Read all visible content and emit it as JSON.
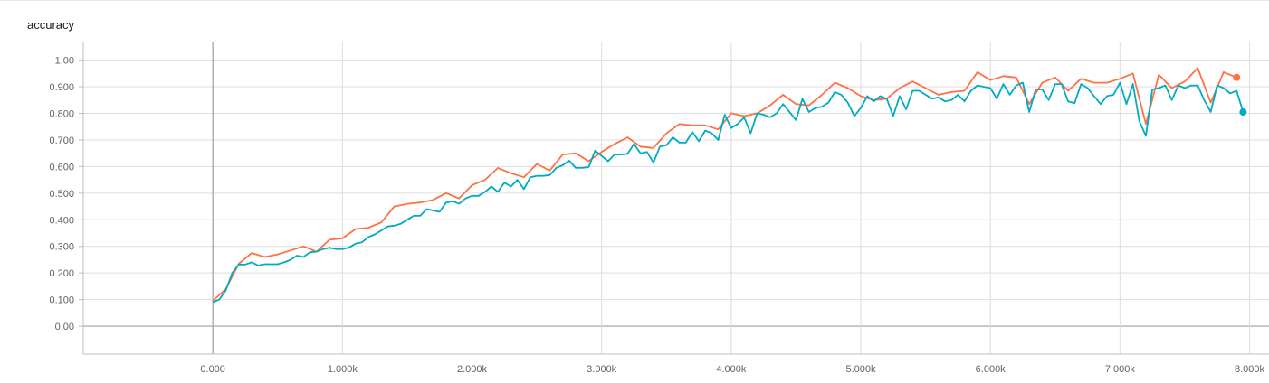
{
  "card": {
    "title": "accuracy"
  },
  "chart_data": {
    "type": "line",
    "title": "accuracy",
    "xlabel": "",
    "ylabel": "",
    "xlim": [
      -1000,
      8150
    ],
    "ylim": [
      -0.105,
      1.07
    ],
    "grid": true,
    "x_ticks": [
      {
        "value": 0,
        "label": "0.000"
      },
      {
        "value": 1000,
        "label": "1.000k"
      },
      {
        "value": 2000,
        "label": "2.000k"
      },
      {
        "value": 3000,
        "label": "3.000k"
      },
      {
        "value": 4000,
        "label": "4.000k"
      },
      {
        "value": 5000,
        "label": "5.000k"
      },
      {
        "value": 6000,
        "label": "6.000k"
      },
      {
        "value": 7000,
        "label": "7.000k"
      },
      {
        "value": 8000,
        "label": "8.000k"
      }
    ],
    "y_ticks": [
      {
        "value": 0.0,
        "label": "0.00"
      },
      {
        "value": 0.1,
        "label": "0.100"
      },
      {
        "value": 0.2,
        "label": "0.200"
      },
      {
        "value": 0.3,
        "label": "0.300"
      },
      {
        "value": 0.4,
        "label": "0.400"
      },
      {
        "value": 0.5,
        "label": "0.500"
      },
      {
        "value": 0.6,
        "label": "0.600"
      },
      {
        "value": 0.7,
        "label": "0.700"
      },
      {
        "value": 0.8,
        "label": "0.800"
      },
      {
        "value": 0.9,
        "label": "0.900"
      },
      {
        "value": 1.0,
        "label": "1.00"
      }
    ],
    "series": [
      {
        "color": "#ff7043",
        "x": [
          0,
          100,
          200,
          300,
          400,
          500,
          600,
          700,
          800,
          900,
          1000,
          1100,
          1200,
          1300,
          1400,
          1500,
          1600,
          1700,
          1800,
          1900,
          2000,
          2100,
          2200,
          2300,
          2400,
          2500,
          2600,
          2700,
          2800,
          2900,
          3000,
          3100,
          3200,
          3300,
          3400,
          3500,
          3600,
          3700,
          3800,
          3900,
          4000,
          4100,
          4200,
          4300,
          4400,
          4500,
          4600,
          4700,
          4800,
          4900,
          5000,
          5100,
          5200,
          5300,
          5400,
          5500,
          5600,
          5700,
          5800,
          5900,
          6000,
          6100,
          6200,
          6300,
          6400,
          6500,
          6600,
          6700,
          6800,
          6900,
          7000,
          7100,
          7200,
          7300,
          7400,
          7500,
          7600,
          7700,
          7800,
          7900
        ],
        "values": [
          0.095,
          0.14,
          0.235,
          0.275,
          0.26,
          0.27,
          0.285,
          0.3,
          0.28,
          0.325,
          0.33,
          0.365,
          0.37,
          0.39,
          0.45,
          0.46,
          0.465,
          0.475,
          0.5,
          0.48,
          0.53,
          0.55,
          0.595,
          0.575,
          0.56,
          0.61,
          0.585,
          0.645,
          0.65,
          0.62,
          0.655,
          0.685,
          0.71,
          0.675,
          0.67,
          0.725,
          0.76,
          0.755,
          0.755,
          0.74,
          0.8,
          0.79,
          0.8,
          0.83,
          0.87,
          0.835,
          0.83,
          0.87,
          0.915,
          0.895,
          0.865,
          0.85,
          0.855,
          0.895,
          0.92,
          0.895,
          0.87,
          0.88,
          0.885,
          0.955,
          0.925,
          0.94,
          0.935,
          0.835,
          0.915,
          0.935,
          0.885,
          0.93,
          0.915,
          0.915,
          0.93,
          0.95,
          0.76,
          0.945,
          0.895,
          0.92,
          0.97,
          0.84,
          0.955,
          0.935
        ]
      },
      {
        "color": "#00acc1",
        "x": [
          0,
          50,
          100,
          150,
          200,
          250,
          300,
          350,
          400,
          450,
          500,
          550,
          600,
          650,
          700,
          750,
          800,
          850,
          900,
          950,
          1000,
          1050,
          1100,
          1150,
          1200,
          1250,
          1300,
          1350,
          1400,
          1450,
          1500,
          1550,
          1600,
          1650,
          1700,
          1750,
          1800,
          1850,
          1900,
          1950,
          2000,
          2050,
          2100,
          2150,
          2200,
          2250,
          2300,
          2350,
          2400,
          2450,
          2500,
          2550,
          2600,
          2650,
          2700,
          2750,
          2800,
          2850,
          2900,
          2950,
          3000,
          3050,
          3100,
          3150,
          3200,
          3250,
          3300,
          3350,
          3400,
          3450,
          3500,
          3550,
          3600,
          3650,
          3700,
          3750,
          3800,
          3850,
          3900,
          3950,
          4000,
          4050,
          4100,
          4150,
          4200,
          4250,
          4300,
          4350,
          4400,
          4450,
          4500,
          4550,
          4600,
          4650,
          4700,
          4750,
          4800,
          4850,
          4900,
          4950,
          5000,
          5050,
          5100,
          5150,
          5200,
          5250,
          5300,
          5350,
          5400,
          5450,
          5500,
          5550,
          5600,
          5650,
          5700,
          5750,
          5800,
          5850,
          5900,
          5950,
          6000,
          6050,
          6100,
          6150,
          6200,
          6250,
          6300,
          6350,
          6400,
          6450,
          6500,
          6550,
          6600,
          6650,
          6700,
          6750,
          6800,
          6850,
          6900,
          6950,
          7000,
          7050,
          7100,
          7150,
          7200,
          7250,
          7300,
          7350,
          7400,
          7450,
          7500,
          7550,
          7600,
          7650,
          7700,
          7750,
          7800,
          7850,
          7900,
          7950
        ],
        "values": [
          0.09,
          0.1,
          0.135,
          0.2,
          0.232,
          0.232,
          0.24,
          0.228,
          0.233,
          0.233,
          0.233,
          0.24,
          0.25,
          0.265,
          0.26,
          0.278,
          0.28,
          0.29,
          0.295,
          0.29,
          0.29,
          0.295,
          0.31,
          0.315,
          0.335,
          0.345,
          0.36,
          0.375,
          0.378,
          0.385,
          0.4,
          0.415,
          0.415,
          0.44,
          0.435,
          0.43,
          0.465,
          0.47,
          0.46,
          0.48,
          0.49,
          0.49,
          0.505,
          0.525,
          0.505,
          0.54,
          0.525,
          0.55,
          0.515,
          0.56,
          0.565,
          0.565,
          0.568,
          0.595,
          0.605,
          0.622,
          0.595,
          0.595,
          0.598,
          0.66,
          0.64,
          0.62,
          0.645,
          0.645,
          0.648,
          0.685,
          0.65,
          0.655,
          0.615,
          0.675,
          0.68,
          0.71,
          0.69,
          0.69,
          0.73,
          0.695,
          0.735,
          0.725,
          0.7,
          0.795,
          0.745,
          0.76,
          0.785,
          0.725,
          0.8,
          0.795,
          0.785,
          0.8,
          0.835,
          0.805,
          0.775,
          0.855,
          0.805,
          0.82,
          0.825,
          0.84,
          0.88,
          0.87,
          0.84,
          0.79,
          0.82,
          0.865,
          0.845,
          0.865,
          0.855,
          0.79,
          0.865,
          0.815,
          0.885,
          0.885,
          0.87,
          0.855,
          0.86,
          0.845,
          0.85,
          0.87,
          0.845,
          0.885,
          0.905,
          0.9,
          0.895,
          0.855,
          0.91,
          0.87,
          0.905,
          0.915,
          0.805,
          0.89,
          0.89,
          0.85,
          0.91,
          0.91,
          0.845,
          0.838,
          0.91,
          0.895,
          0.865,
          0.835,
          0.865,
          0.87,
          0.915,
          0.835,
          0.91,
          0.77,
          0.715,
          0.89,
          0.895,
          0.905,
          0.85,
          0.905,
          0.895,
          0.905,
          0.905,
          0.85,
          0.805,
          0.905,
          0.895,
          0.875,
          0.885,
          0.805
        ]
      }
    ]
  }
}
